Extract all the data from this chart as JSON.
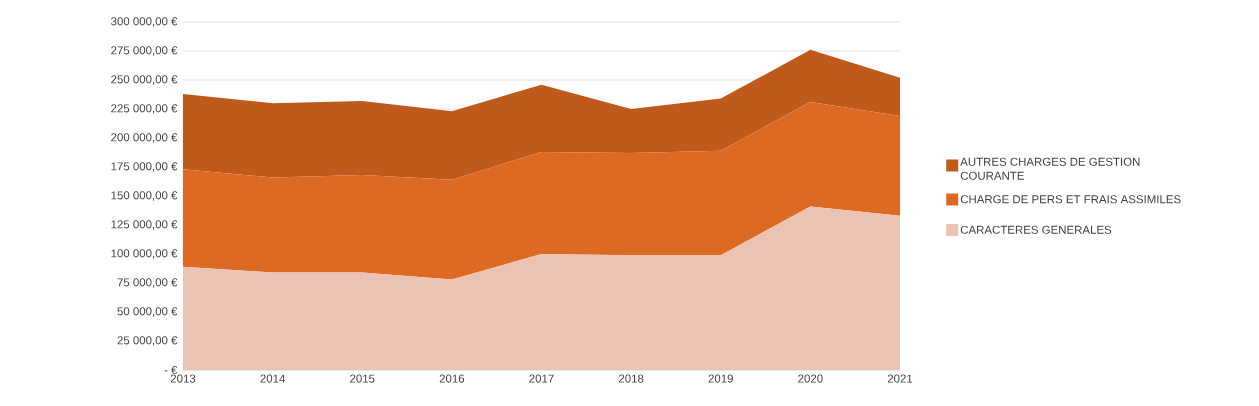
{
  "chart_data": {
    "type": "area",
    "stacked": true,
    "grid": "y",
    "legend": "right",
    "x": [
      2013,
      2014,
      2015,
      2016,
      2017,
      2018,
      2019,
      2020,
      2021
    ],
    "xlim": [
      2013,
      2021
    ],
    "xticks": [
      2013,
      2014,
      2015,
      2016,
      2017,
      2018,
      2019,
      2020,
      2021
    ],
    "ylim": [
      0,
      300000
    ],
    "yticks": [
      {
        "value": 0,
        "label": "-   €"
      },
      {
        "value": 25000,
        "label": "25 000,00 €"
      },
      {
        "value": 50000,
        "label": "50 000,00 €"
      },
      {
        "value": 75000,
        "label": "75 000,00 €"
      },
      {
        "value": 100000,
        "label": "100 000,00 €"
      },
      {
        "value": 125000,
        "label": "125 000,00 €"
      },
      {
        "value": 150000,
        "label": "150 000,00 €"
      },
      {
        "value": 175000,
        "label": "175 000,00 €"
      },
      {
        "value": 200000,
        "label": "200 000,00 €"
      },
      {
        "value": 225000,
        "label": "225 000,00 €"
      },
      {
        "value": 250000,
        "label": "250 000,00 €"
      },
      {
        "value": 275000,
        "label": "275 000,00 €"
      },
      {
        "value": 300000,
        "label": "300 000,00 €"
      }
    ],
    "series": [
      {
        "name": "CARACTERES  GENERALES",
        "color": "#ecc2b4",
        "values": [
          89000,
          84000,
          84000,
          78000,
          100000,
          99000,
          99000,
          141000,
          133000
        ]
      },
      {
        "name": "CHARGE DE PERS ET FRAIS ASSIMILES",
        "color": "#dd6a22",
        "values": [
          84000,
          82000,
          84000,
          86000,
          88000,
          88000,
          90000,
          90000,
          86000
        ]
      },
      {
        "name": "AUTRES CHARGES DE GESTION COURANTE",
        "color": "#bf5a1c",
        "values": [
          65000,
          64000,
          64000,
          59000,
          58000,
          38000,
          45000,
          45000,
          33000
        ]
      }
    ]
  }
}
